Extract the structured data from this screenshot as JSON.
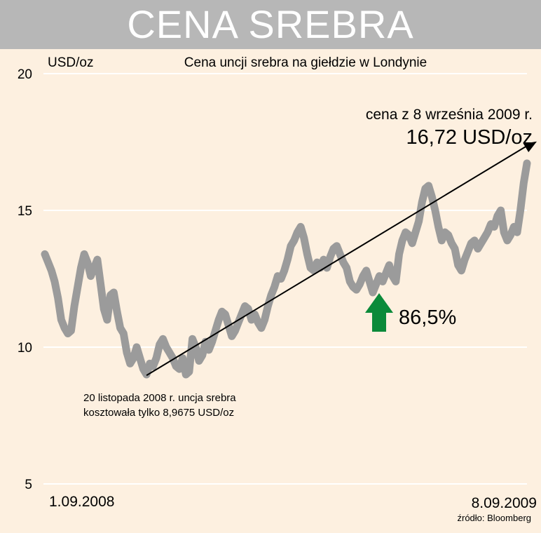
{
  "header": {
    "title": "CENA SREBRA"
  },
  "colors": {
    "title_bar": "#b7b7b7",
    "background": "#fdf0e0",
    "line": "#9b9b9b",
    "arrow_up": "#0b8a3a",
    "trend": "#000000"
  },
  "chart_data": {
    "type": "line",
    "title": "Cena uncji srebra na giełdzie w Londynie",
    "ylabel": "USD/oz",
    "ylim": [
      5,
      20
    ],
    "yticks": [
      20,
      15,
      10,
      5
    ],
    "grid": true,
    "x_start_label": "1.09.2008",
    "x_end_label": "8.09.2009",
    "series": [
      {
        "values": [
          13.4,
          13.1,
          12.8,
          12.4,
          11.8,
          11.0,
          10.7,
          10.5,
          10.6,
          11.5,
          12.2,
          12.9,
          13.4,
          13.1,
          12.6,
          12.9,
          13.2,
          12.3,
          11.4,
          11.0,
          11.9,
          12.0,
          11.3,
          10.7,
          10.5,
          9.8,
          9.4,
          9.6,
          10.0,
          9.6,
          9.2,
          9.0,
          9.4,
          9.3,
          9.6,
          10.1,
          10.3,
          10.0,
          9.8,
          9.6,
          9.3,
          9.2,
          9.6,
          9.0,
          9.1,
          10.3,
          10.0,
          9.5,
          9.7,
          10.2,
          9.9,
          10.2,
          10.6,
          11.0,
          11.3,
          11.2,
          10.8,
          10.4,
          10.6,
          10.9,
          11.2,
          11.5,
          11.4,
          11.0,
          11.2,
          10.9,
          10.7,
          11.0,
          11.5,
          11.9,
          12.2,
          12.6,
          12.5,
          12.8,
          13.2,
          13.7,
          13.9,
          14.2,
          14.4,
          14.0,
          13.4,
          12.9,
          12.8,
          13.1,
          12.9,
          13.2,
          12.9,
          13.3,
          13.6,
          13.7,
          13.4,
          13.1,
          12.9,
          12.4,
          12.2,
          12.1,
          12.3,
          12.6,
          12.8,
          12.4,
          12.0,
          12.3,
          12.6,
          12.4,
          12.7,
          13.0,
          12.6,
          12.4,
          13.4,
          13.9,
          14.2,
          14.1,
          13.8,
          14.2,
          14.6,
          15.3,
          15.8,
          15.9,
          15.5,
          15.0,
          14.4,
          13.9,
          14.2,
          14.1,
          13.8,
          13.6,
          13.0,
          12.8,
          13.2,
          13.5,
          13.8,
          13.9,
          13.6,
          13.8,
          14.0,
          14.2,
          14.5,
          14.4,
          14.8,
          15.0,
          14.2,
          13.9,
          14.1,
          14.4,
          14.2,
          15.0,
          16.0,
          16.72
        ]
      }
    ],
    "annotations": {
      "end_label": "cena z 8 września 2009 r.",
      "end_value": "16,72 USD/oz",
      "change": "86,5%",
      "low_note_line1": "20 listopada 2008 r. uncja srebra",
      "low_note_line2": "kosztowała tylko 8,9675 USD/oz",
      "low_value": 8.9675,
      "end_value_num": 16.72
    },
    "source": "źródło: Bloomberg"
  }
}
